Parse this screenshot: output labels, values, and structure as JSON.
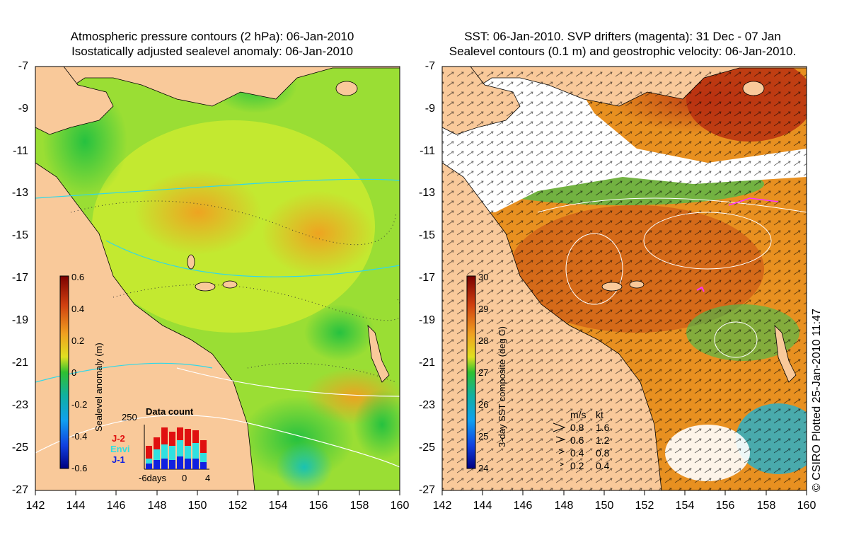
{
  "left_panel": {
    "title_line1": "Atmospheric pressure contours (2 hPa): 06-Jan-2010",
    "title_line2": "Isostatically adjusted sealevel anomaly: 06-Jan-2010",
    "colorbar_label": "Sealevel anomaly (m)",
    "colorbar_ticks": [
      "0.6",
      "0.4",
      "0.2",
      "0",
      "-0.2",
      "-0.4",
      "-0.6"
    ],
    "inset": {
      "title": "Data count",
      "ymax": "250",
      "legend": [
        {
          "label": "J-2",
          "color": "#e01010"
        },
        {
          "label": "Envi",
          "color": "#30e0e0"
        },
        {
          "label": "J-1",
          "color": "#1020e0"
        }
      ],
      "xlabels": [
        "-6days",
        "0",
        "4"
      ]
    }
  },
  "right_panel": {
    "title_line1": "SST: 06-Jan-2010. SVP drifters (magenta): 31 Dec - 07 Jan",
    "title_line2": "Sealevel contours (0.1 m) and geostrophic velocity: 06-Jan-2010.",
    "colorbar_label": "3-day SST composite (deg C)",
    "colorbar_ticks": [
      "30",
      "29",
      "28",
      "27",
      "26",
      "25",
      "24"
    ],
    "velocity_legend": {
      "header_ms": "m/s",
      "header_kt": "kt",
      "rows": [
        {
          "ms": "0.8",
          "kt": "1.6"
        },
        {
          "ms": "0.6",
          "kt": "1.2"
        },
        {
          "ms": "0.4",
          "kt": "0.8"
        },
        {
          "ms": "0.2",
          "kt": "0.4"
        }
      ]
    }
  },
  "axes": {
    "lat_ticks": [
      "-7",
      "-9",
      "-11",
      "-13",
      "-15",
      "-17",
      "-19",
      "-21",
      "-23",
      "-25",
      "-27"
    ],
    "lon_ticks": [
      "142",
      "144",
      "146",
      "148",
      "150",
      "152",
      "154",
      "156",
      "158",
      "160"
    ]
  },
  "credit": "© CSIRO Plotted 25-Jan-2010 11:47",
  "colors": {
    "land": "#f9c99a",
    "anomaly_low": "#2cc830",
    "anomaly_mid": "#b8e838",
    "anomaly_high": "#f0a020",
    "sst_warm": "#c84010",
    "sst_mid": "#e8a020",
    "sst_cool": "#30c060"
  }
}
